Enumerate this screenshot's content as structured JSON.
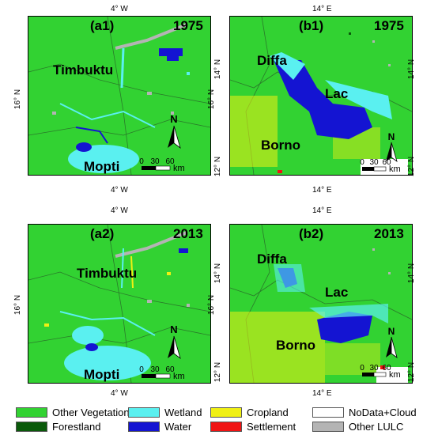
{
  "panels": {
    "a1": {
      "tag": "(a1)",
      "year": "1975",
      "place_top": "Timbuktu",
      "place_bottom": "Mopti",
      "lon_top": "4° W",
      "lon_bottom": "4° W",
      "lat_left": "16° N",
      "lat_right": "16° N"
    },
    "b1": {
      "tag": "(b1)",
      "year": "1975",
      "place_1": "Diffa",
      "place_2": "Lac",
      "place_3": "Borno",
      "lon_top": "14° E",
      "lon_bottom": "14° E",
      "lat_left_top": "14° N",
      "lat_left_bottom": "12° N",
      "lat_right_top": "14° N",
      "lat_right_bottom": "12° N"
    },
    "a2": {
      "tag": "(a2)",
      "year": "2013",
      "place_top": "Timbuktu",
      "place_bottom": "Mopti",
      "lon_top": "4° W",
      "lon_bottom": "4° W",
      "lat_left": "16° N",
      "lat_right": "16° N"
    },
    "b2": {
      "tag": "(b2)",
      "year": "2013",
      "place_1": "Diffa",
      "place_2": "Lac",
      "place_3": "Borno",
      "lon_top": "14° E",
      "lon_bottom": "14° E",
      "lat_left_top": "14° N",
      "lat_left_bottom": "12° N",
      "lat_right_top": "14° N",
      "lat_right_bottom": "12° N"
    }
  },
  "north_arrow": {
    "label": "N"
  },
  "scalebar": {
    "labels": [
      "0",
      "30",
      "60"
    ],
    "unit": "km"
  },
  "legend": [
    {
      "label": "Other Vegetation",
      "color": "#32d232"
    },
    {
      "label": "Forestland",
      "color": "#0a5a0a"
    },
    {
      "label": "Wetland",
      "color": "#5af0f0"
    },
    {
      "label": "Water",
      "color": "#1414d2"
    },
    {
      "label": "Cropland",
      "color": "#f0f014"
    },
    {
      "label": "Settlement",
      "color": "#f01414"
    },
    {
      "label": "NoData+Cloud",
      "color": "#ffffff"
    },
    {
      "label": "Other LULC",
      "color": "#b4b4b4"
    }
  ]
}
